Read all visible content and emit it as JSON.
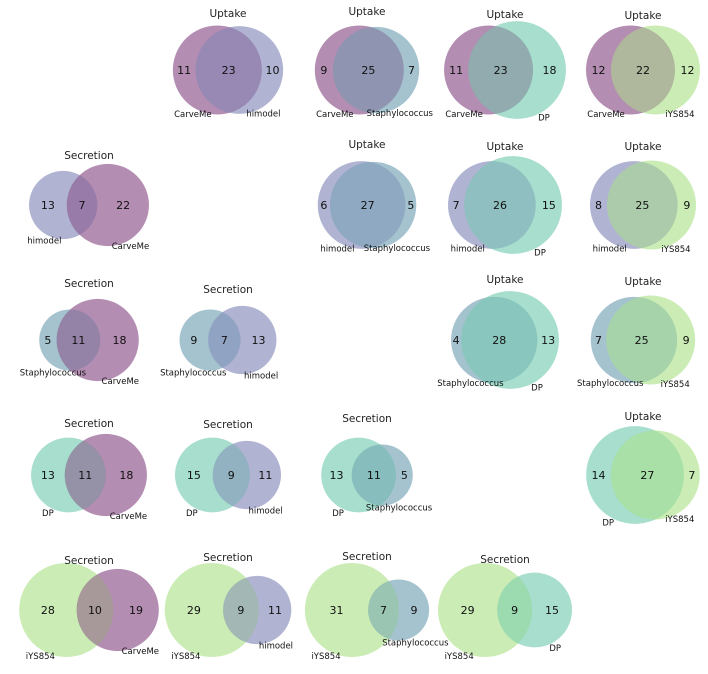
{
  "colors": {
    "CarveMe": "#6a1b66",
    "himodel": "#626aa5",
    "Staphylococcus": "#4b88a0",
    "DP": "#4fbe9c",
    "iYS854": "#98dc6b"
  },
  "chart_data": {
    "type": "venn",
    "plots": [
      {
        "id": "p01",
        "title": "Uptake",
        "sets": [
          "CarveMe",
          "himodel"
        ],
        "left": 11,
        "both": 23,
        "right": 10
      },
      {
        "id": "p02",
        "title": "Uptake",
        "sets": [
          "CarveMe",
          "Staphylococcus"
        ],
        "left": 9,
        "both": 25,
        "right": 7
      },
      {
        "id": "p03",
        "title": "Uptake",
        "sets": [
          "CarveMe",
          "DP"
        ],
        "left": 11,
        "both": 23,
        "right": 18
      },
      {
        "id": "p04",
        "title": "Uptake",
        "sets": [
          "CarveMe",
          "iYS854"
        ],
        "left": 12,
        "both": 22,
        "right": 12
      },
      {
        "id": "p05",
        "title": "Secretion",
        "sets": [
          "himodel",
          "CarveMe"
        ],
        "left": 13,
        "both": 7,
        "right": 22
      },
      {
        "id": "p06",
        "title": "Uptake",
        "sets": [
          "himodel",
          "Staphylococcus"
        ],
        "left": 6,
        "both": 27,
        "right": 5
      },
      {
        "id": "p07",
        "title": "Uptake",
        "sets": [
          "himodel",
          "DP"
        ],
        "left": 7,
        "both": 26,
        "right": 15
      },
      {
        "id": "p08",
        "title": "Uptake",
        "sets": [
          "himodel",
          "iYS854"
        ],
        "left": 8,
        "both": 25,
        "right": 9
      },
      {
        "id": "p09",
        "title": "Secretion",
        "sets": [
          "Staphylococcus",
          "CarveMe"
        ],
        "left": 5,
        "both": 11,
        "right": 18
      },
      {
        "id": "p10",
        "title": "Secretion",
        "sets": [
          "Staphylococcus",
          "himodel"
        ],
        "left": 9,
        "both": 7,
        "right": 13
      },
      {
        "id": "p11",
        "title": "Uptake",
        "sets": [
          "Staphylococcus",
          "DP"
        ],
        "left": 4,
        "both": 28,
        "right": 13
      },
      {
        "id": "p12",
        "title": "Uptake",
        "sets": [
          "Staphylococcus",
          "iYS854"
        ],
        "left": 7,
        "both": 25,
        "right": 9
      },
      {
        "id": "p13",
        "title": "Secretion",
        "sets": [
          "DP",
          "CarveMe"
        ],
        "left": 13,
        "both": 11,
        "right": 18
      },
      {
        "id": "p14",
        "title": "Secretion",
        "sets": [
          "DP",
          "himodel"
        ],
        "left": 15,
        "both": 9,
        "right": 11
      },
      {
        "id": "p15",
        "title": "Secretion",
        "sets": [
          "DP",
          "Staphylococcus"
        ],
        "left": 13,
        "both": 11,
        "right": 5
      },
      {
        "id": "p16",
        "title": "Uptake",
        "sets": [
          "DP",
          "iYS854"
        ],
        "left": 14,
        "both": 27,
        "right": 7
      },
      {
        "id": "p17",
        "title": "Secretion",
        "sets": [
          "iYS854",
          "CarveMe"
        ],
        "left": 28,
        "both": 10,
        "right": 19
      },
      {
        "id": "p18",
        "title": "Secretion",
        "sets": [
          "iYS854",
          "himodel"
        ],
        "left": 29,
        "both": 9,
        "right": 11
      },
      {
        "id": "p19",
        "title": "Secretion",
        "sets": [
          "iYS854",
          "Staphylococcus"
        ],
        "left": 31,
        "both": 7,
        "right": 9
      },
      {
        "id": "p20",
        "title": "Secretion",
        "sets": [
          "iYS854",
          "DP"
        ],
        "left": 29,
        "both": 9,
        "right": 15
      }
    ]
  }
}
